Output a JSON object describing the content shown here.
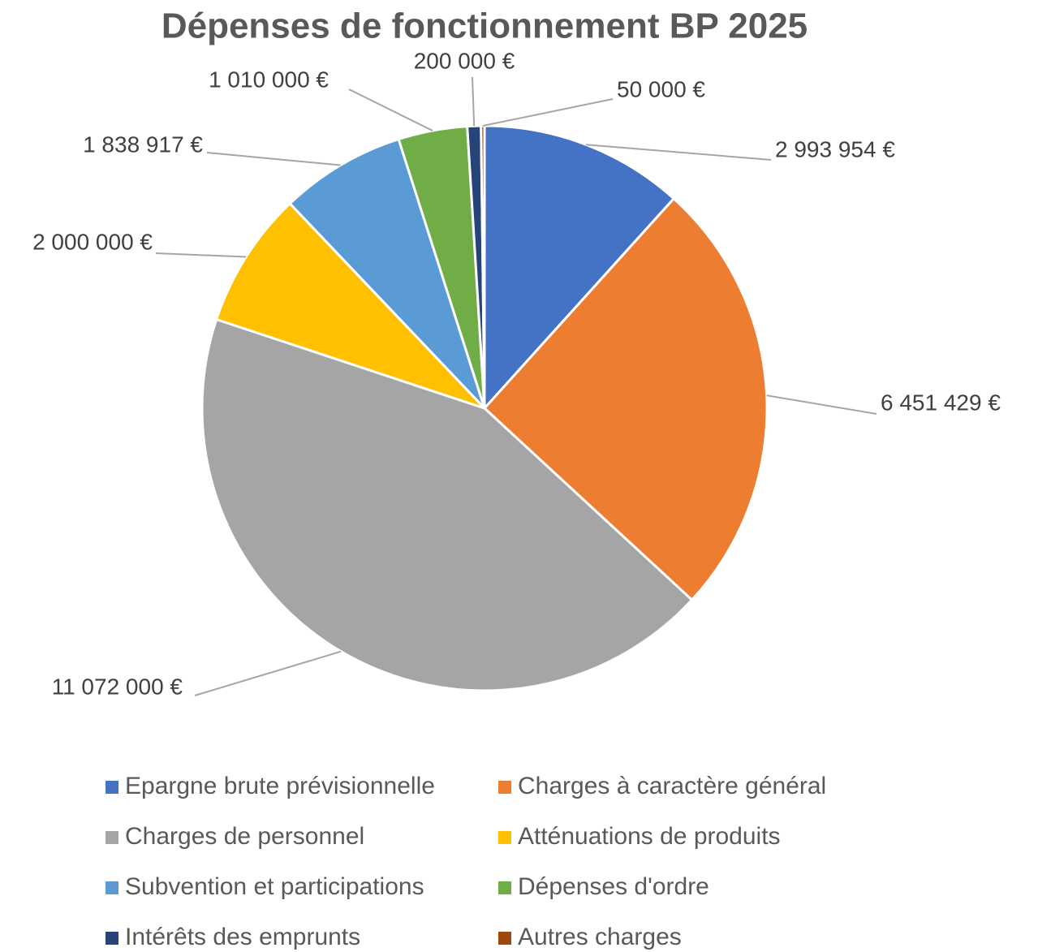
{
  "chart_data": {
    "type": "pie",
    "title": "Dépenses de fonctionnement BP 2025",
    "categories": [
      "Epargne brute prévisionnelle",
      "Charges à caractère général",
      "Charges de personnel",
      "Atténuations de produits",
      "Subvention et participations",
      "Dépenses d'ordre",
      "Intérêts des emprunts",
      "Autres charges"
    ],
    "values": [
      2993954,
      6451429,
      11072000,
      2000000,
      1838917,
      1010000,
      200000,
      50000
    ],
    "value_labels": [
      "2 993 954 €",
      "6 451 429 €",
      "11 072 000 €",
      "2 000 000 €",
      "1 838 917 €",
      "1 010 000 €",
      "200 000 €",
      "50 000 €"
    ],
    "colors": [
      "#4472c4",
      "#ed7d31",
      "#a5a5a5",
      "#ffc000",
      "#5b9bd5",
      "#70ad47",
      "#264478",
      "#9e480e"
    ],
    "legend": "bottom"
  }
}
